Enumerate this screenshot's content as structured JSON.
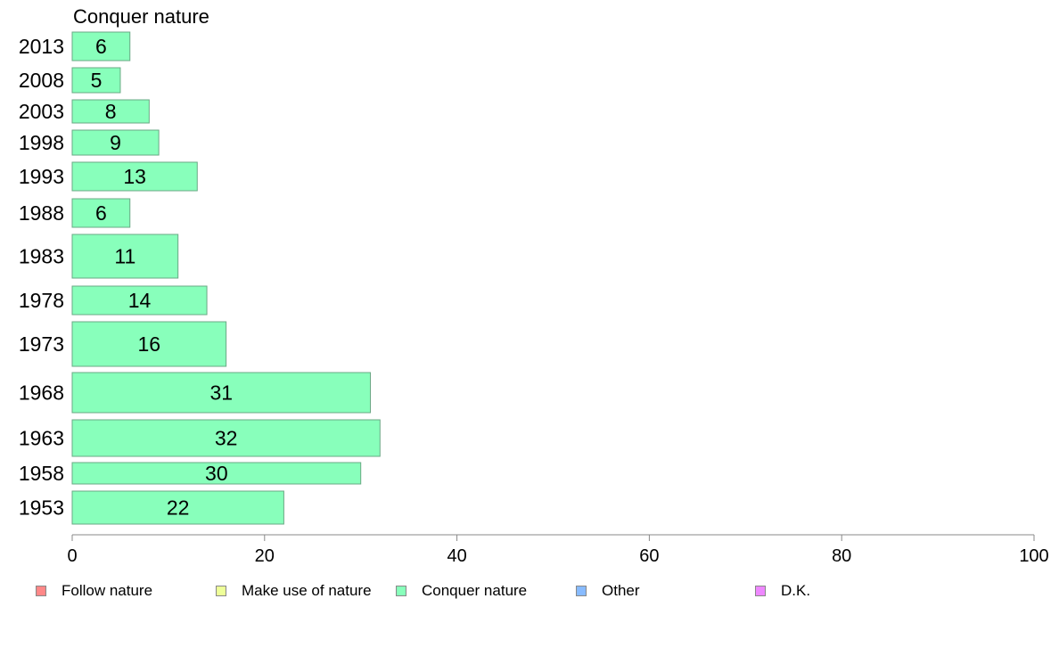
{
  "chart_data": {
    "type": "bar",
    "orientation": "horizontal",
    "title": "Conquer nature",
    "categories": [
      "2013",
      "2008",
      "2003",
      "1998",
      "1993",
      "1988",
      "1983",
      "1978",
      "1973",
      "1968",
      "1963",
      "1958",
      "1953"
    ],
    "values": [
      6,
      5,
      8,
      9,
      13,
      6,
      11,
      14,
      16,
      31,
      32,
      30,
      22
    ],
    "xlim": [
      0,
      100
    ],
    "xticks": [
      "0",
      "20",
      "40",
      "60",
      "80",
      "100"
    ],
    "bar_color": "#88ffbb",
    "grid": false,
    "legend_position": "bottom",
    "legend": [
      {
        "label": "Follow nature",
        "color": "#ff8888"
      },
      {
        "label": "Make use of nature",
        "color": "#eeff99"
      },
      {
        "label": "Conquer nature",
        "color": "#88ffbb"
      },
      {
        "label": "Other",
        "color": "#88bbff"
      },
      {
        "label": "D.K.",
        "color": "#ee88ff"
      }
    ]
  }
}
